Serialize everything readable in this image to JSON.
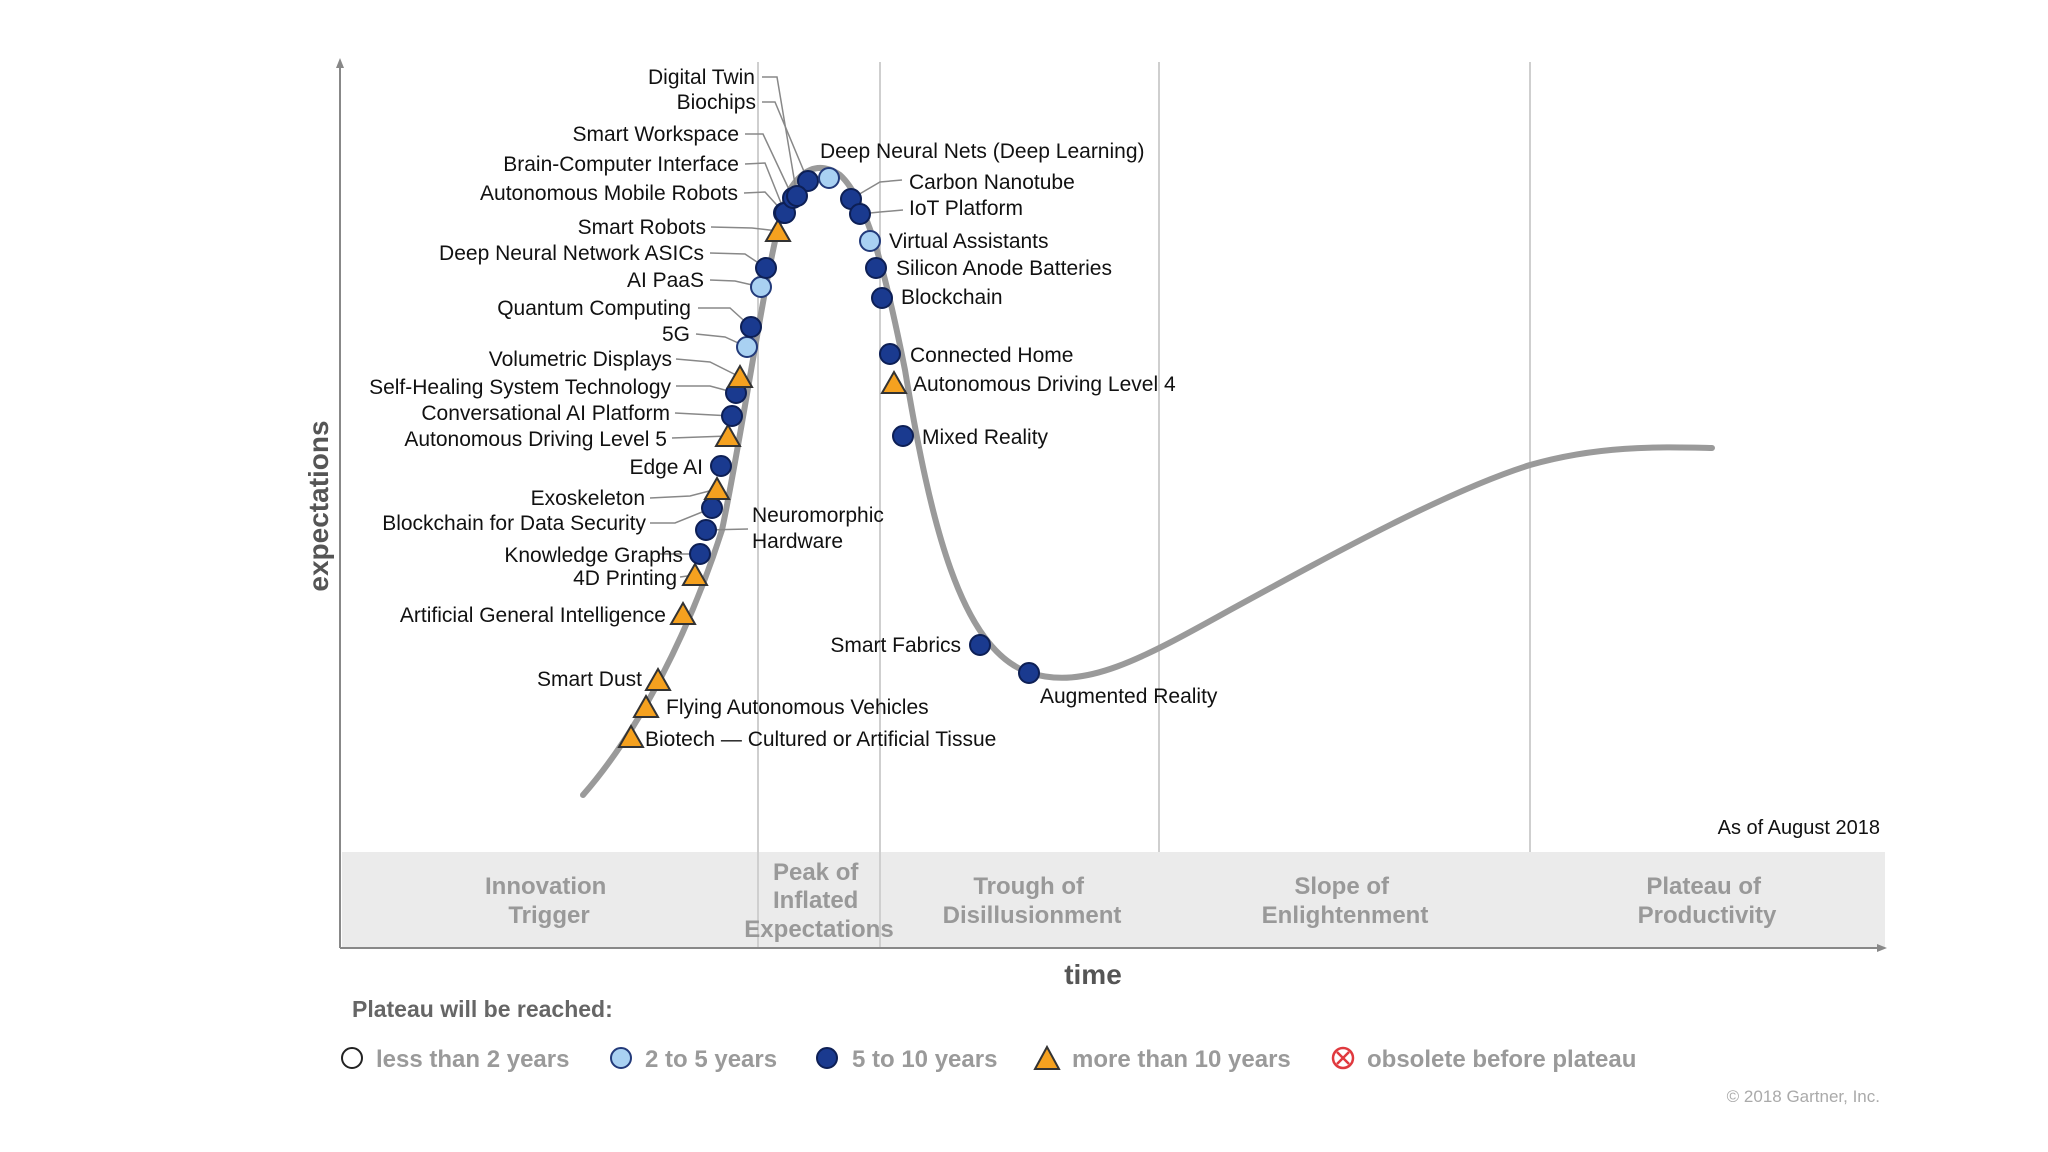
{
  "chart_data": {
    "type": "hype_cycle",
    "ylabel": "expectations",
    "xlabel": "time",
    "as_of": "As of August 2018",
    "copyright": "© 2018 Gartner, Inc.",
    "phases": [
      "Innovation Trigger",
      "Peak of Inflated Expectations",
      "Trough of Disillusionment",
      "Slope of Enlightenment",
      "Plateau of Productivity"
    ],
    "legend_title": "Plateau will be reached:",
    "legend": [
      {
        "key": "lt2",
        "label": "less than 2 years"
      },
      {
        "key": "2to5",
        "label": "2 to 5 years"
      },
      {
        "key": "5to10",
        "label": "5 to 10 years"
      },
      {
        "key": "gt10",
        "label": "more than 10 years"
      },
      {
        "key": "obsolete",
        "label": "obsolete before plateau"
      }
    ],
    "colors": {
      "dark": "#1a3a8f",
      "light": "#a9d1f2",
      "triangle": "#f5a11f",
      "curve": "#9a9a9a",
      "obsolete": "#e0393e"
    },
    "technologies": [
      {
        "name": "Biotech — Cultured or Artificial Tissue",
        "plateau": "gt10"
      },
      {
        "name": "Flying Autonomous Vehicles",
        "plateau": "gt10"
      },
      {
        "name": "Smart Dust",
        "plateau": "gt10"
      },
      {
        "name": "Artificial General Intelligence",
        "plateau": "gt10"
      },
      {
        "name": "4D Printing",
        "plateau": "gt10"
      },
      {
        "name": "Knowledge Graphs",
        "plateau": "5to10"
      },
      {
        "name": "Neuromorphic Hardware",
        "plateau": "5to10"
      },
      {
        "name": "Blockchain for Data Security",
        "plateau": "5to10"
      },
      {
        "name": "Exoskeleton",
        "plateau": "gt10"
      },
      {
        "name": "Edge AI",
        "plateau": "5to10"
      },
      {
        "name": "Autonomous Driving Level 5",
        "plateau": "gt10"
      },
      {
        "name": "Conversational AI Platform",
        "plateau": "5to10"
      },
      {
        "name": "Self-Healing System Technology",
        "plateau": "5to10"
      },
      {
        "name": "Volumetric Displays",
        "plateau": "gt10"
      },
      {
        "name": "5G",
        "plateau": "2to5"
      },
      {
        "name": "Quantum Computing",
        "plateau": "5to10"
      },
      {
        "name": "AI PaaS",
        "plateau": "2to5"
      },
      {
        "name": "Deep Neural Network ASICs",
        "plateau": "5to10"
      },
      {
        "name": "Smart Robots",
        "plateau": "gt10"
      },
      {
        "name": "Autonomous Mobile Robots",
        "plateau": "5to10"
      },
      {
        "name": "Brain-Computer Interface",
        "plateau": "5to10"
      },
      {
        "name": "Smart Workspace",
        "plateau": "5to10"
      },
      {
        "name": "Biochips",
        "plateau": "5to10"
      },
      {
        "name": "Digital Twin",
        "plateau": "5to10"
      },
      {
        "name": "Deep Neural Nets (Deep Learning)",
        "plateau": "2to5"
      },
      {
        "name": "Carbon Nanotube",
        "plateau": "5to10"
      },
      {
        "name": "IoT Platform",
        "plateau": "5to10"
      },
      {
        "name": "Virtual Assistants",
        "plateau": "2to5"
      },
      {
        "name": "Silicon Anode Batteries",
        "plateau": "5to10"
      },
      {
        "name": "Blockchain",
        "plateau": "5to10"
      },
      {
        "name": "Connected Home",
        "plateau": "5to10"
      },
      {
        "name": "Autonomous Driving Level 4",
        "plateau": "gt10"
      },
      {
        "name": "Mixed Reality",
        "plateau": "5to10"
      },
      {
        "name": "Smart Fabrics",
        "plateau": "5to10"
      },
      {
        "name": "Augmented Reality",
        "plateau": "5to10"
      }
    ]
  }
}
